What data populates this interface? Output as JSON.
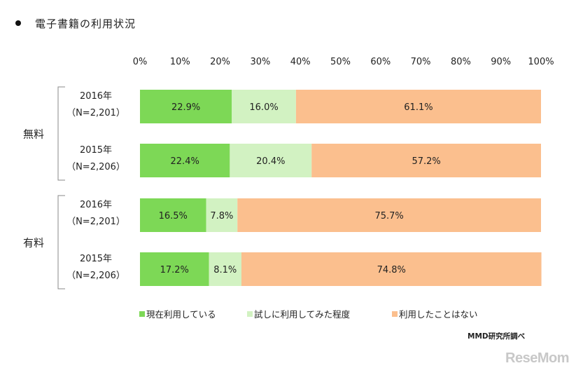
{
  "title": "電子書籍の利用状況",
  "source": "MMD研究所調べ",
  "logo_text": "ReseMom",
  "colors": {
    "series": [
      "#7dd856",
      "#d2f2c2",
      "#fbbf8e"
    ],
    "bracket": "#888888"
  },
  "chart_data": {
    "type": "bar",
    "orientation": "horizontal",
    "stacked": true,
    "xlim": [
      0,
      100
    ],
    "ticks": [
      "0%",
      "10%",
      "20%",
      "30%",
      "40%",
      "50%",
      "60%",
      "70%",
      "80%",
      "90%",
      "100%"
    ],
    "groups": [
      {
        "label": "無料",
        "rows": [
          {
            "year": "2016年",
            "n": "（N=2,201）",
            "values": [
              22.9,
              16.0,
              61.1
            ],
            "labels": [
              "22.9%",
              "16.0%",
              "61.1%"
            ]
          },
          {
            "year": "2015年",
            "n": "（N=2,206）",
            "values": [
              22.4,
              20.4,
              57.2
            ],
            "labels": [
              "22.4%",
              "20.4%",
              "57.2%"
            ]
          }
        ]
      },
      {
        "label": "有料",
        "rows": [
          {
            "year": "2016年",
            "n": "（N=2,201）",
            "values": [
              16.5,
              7.8,
              75.7
            ],
            "labels": [
              "16.5%",
              "7.8%",
              "75.7%"
            ]
          },
          {
            "year": "2015年",
            "n": "（N=2,206）",
            "values": [
              17.2,
              8.1,
              74.8
            ],
            "labels": [
              "17.2%",
              "8.1%",
              "74.8%"
            ]
          }
        ]
      }
    ],
    "series": [
      {
        "name": "現在利用している"
      },
      {
        "name": "試しに利用してみた程度"
      },
      {
        "name": "利用したことはない"
      }
    ],
    "legend_position": "bottom"
  }
}
